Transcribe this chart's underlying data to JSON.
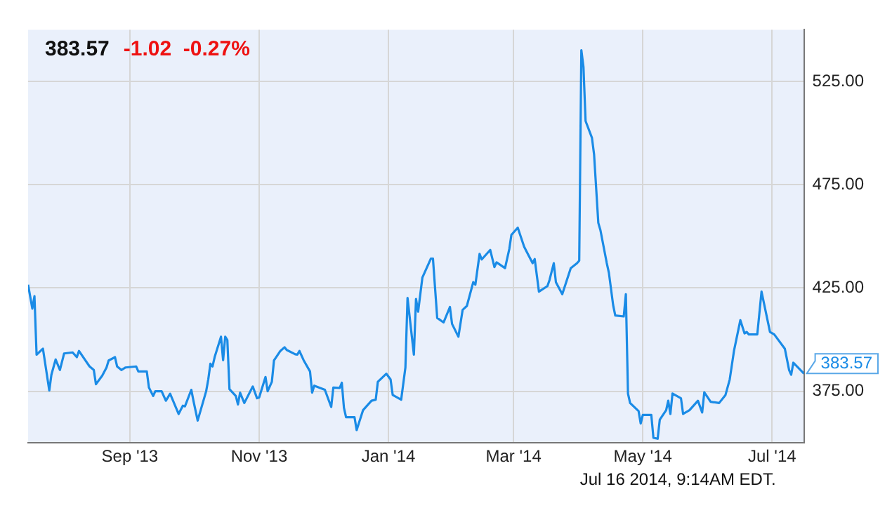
{
  "chart_data": {
    "type": "line",
    "title": "383.57",
    "subtitle": "-1.02  -0.27%",
    "annotations": [
      {
        "text": "383.57",
        "x": "2014-07-16",
        "y": 383.57
      },
      "Jul 16 2014, 9:14AM EDT."
    ],
    "xlim": [
      "2013-07-15",
      "2014-07-16"
    ],
    "xticks": [
      {
        "value": "2013-09-01",
        "label": "Sep '13"
      },
      {
        "value": "2013-11-01",
        "label": "Nov '13"
      },
      {
        "value": "2014-01-01",
        "label": "Jan '14"
      },
      {
        "value": "2014-03-01",
        "label": "Mar '14"
      },
      {
        "value": "2014-05-01",
        "label": "May '14"
      },
      {
        "value": "2014-07-01",
        "label": "Jul '14"
      }
    ],
    "ylim": [
      350,
      550
    ],
    "yticks": [
      {
        "value": 375,
        "label": "375.00"
      },
      {
        "value": 425,
        "label": "425.00"
      },
      {
        "value": 475,
        "label": "475.00"
      },
      {
        "value": 525,
        "label": "525.00"
      }
    ],
    "grid": true,
    "legend": false,
    "marker": "none",
    "line_style": "solid",
    "series": [
      {
        "color": "#1a8be6",
        "x": [
          "2013-07-15",
          "2013-07-17",
          "2013-07-18",
          "2013-07-19",
          "2013-07-22",
          "2013-07-25",
          "2013-07-26",
          "2013-07-28",
          "2013-07-30",
          "2013-08-01",
          "2013-08-05",
          "2013-08-07",
          "2013-08-08",
          "2013-08-13",
          "2013-08-15",
          "2013-08-16",
          "2013-08-19",
          "2013-08-21",
          "2013-08-22",
          "2013-08-25",
          "2013-08-26",
          "2013-08-28",
          "2013-08-30",
          "2013-09-04",
          "2013-09-05",
          "2013-09-09",
          "2013-09-10",
          "2013-09-12",
          "2013-09-13",
          "2013-09-16",
          "2013-09-18",
          "2013-09-20",
          "2013-09-24",
          "2013-09-26",
          "2013-09-27",
          "2013-09-30",
          "2013-10-01",
          "2013-10-03",
          "2013-10-07",
          "2013-10-08",
          "2013-10-09",
          "2013-10-10",
          "2013-10-11",
          "2013-10-14",
          "2013-10-15",
          "2013-10-16",
          "2013-10-17",
          "2013-10-18",
          "2013-10-21",
          "2013-10-22",
          "2013-10-23",
          "2013-10-25",
          "2013-10-29",
          "2013-10-31",
          "2013-11-01",
          "2013-11-04",
          "2013-11-05",
          "2013-11-07",
          "2013-11-08",
          "2013-11-11",
          "2013-11-13",
          "2013-11-14",
          "2013-11-18",
          "2013-11-19",
          "2013-11-20",
          "2013-11-22",
          "2013-11-25",
          "2013-11-26",
          "2013-11-27",
          "2013-12-02",
          "2013-12-05",
          "2013-12-06",
          "2013-12-09",
          "2013-12-10",
          "2013-12-11",
          "2013-12-12",
          "2013-12-16",
          "2013-12-17",
          "2013-12-18",
          "2013-12-20",
          "2013-12-24",
          "2013-12-26",
          "2013-12-27",
          "2013-12-31",
          "2014-01-02",
          "2014-01-03",
          "2014-01-07",
          "2014-01-09",
          "2014-01-10",
          "2014-01-13",
          "2014-01-14",
          "2014-01-15",
          "2014-01-17",
          "2014-01-21",
          "2014-01-22",
          "2014-01-24",
          "2014-01-27",
          "2014-01-30",
          "2014-01-31",
          "2014-02-03",
          "2014-02-05",
          "2014-02-07",
          "2014-02-10",
          "2014-02-11",
          "2014-02-13",
          "2014-02-14",
          "2014-02-18",
          "2014-02-20",
          "2014-02-21",
          "2014-02-25",
          "2014-02-27",
          "2014-02-28",
          "2014-03-03",
          "2014-03-06",
          "2014-03-07",
          "2014-03-10",
          "2014-03-11",
          "2014-03-13",
          "2014-03-17",
          "2014-03-18",
          "2014-03-20",
          "2014-03-21",
          "2014-03-24",
          "2014-03-28",
          "2014-03-31",
          "2014-04-01",
          "2014-04-02",
          "2014-04-03",
          "2014-04-04",
          "2014-04-07",
          "2014-04-08",
          "2014-04-10",
          "2014-04-11",
          "2014-04-14",
          "2014-04-15",
          "2014-04-17",
          "2014-04-18",
          "2014-04-22",
          "2014-04-23",
          "2014-04-24",
          "2014-04-25",
          "2014-04-29",
          "2014-04-30",
          "2014-05-01",
          "2014-05-05",
          "2014-05-06",
          "2014-05-08",
          "2014-05-09",
          "2014-05-12",
          "2014-05-13",
          "2014-05-14",
          "2014-05-15",
          "2014-05-19",
          "2014-05-20",
          "2014-05-23",
          "2014-05-27",
          "2014-05-29",
          "2014-05-30",
          "2014-06-02",
          "2014-06-06",
          "2014-06-09",
          "2014-06-11",
          "2014-06-13",
          "2014-06-16",
          "2014-06-18",
          "2014-06-19",
          "2014-06-20",
          "2014-06-24",
          "2014-06-26",
          "2014-06-30",
          "2014-07-02",
          "2014-07-07",
          "2014-07-09",
          "2014-07-10",
          "2014-07-11",
          "2014-07-16"
        ],
        "values": [
          426.6,
          415,
          421,
          392.7,
          395.6,
          375.4,
          383,
          390.4,
          385.3,
          393.3,
          393.8,
          391.5,
          394.5,
          387,
          385.3,
          378.4,
          382.6,
          386.5,
          389.9,
          391.5,
          387,
          385.3,
          386.5,
          387,
          384.6,
          384.6,
          376.8,
          372.7,
          375,
          375,
          370.4,
          373.8,
          364,
          368,
          367.7,
          375.7,
          370.4,
          360.8,
          375,
          380.7,
          388.3,
          387,
          391.5,
          401.4,
          390,
          401.4,
          399.8,
          376,
          372.7,
          368.6,
          374.3,
          369.3,
          377.3,
          371.6,
          372,
          381.9,
          375,
          379.6,
          389.9,
          394.5,
          396.3,
          395,
          392.9,
          392.7,
          394.5,
          390,
          384.6,
          374.3,
          377.7,
          375.7,
          367.4,
          376.8,
          376.6,
          379.1,
          367,
          362.4,
          362.4,
          356.2,
          359.4,
          365.8,
          370.4,
          370.9,
          379.6,
          383.5,
          380.7,
          373.2,
          370.9,
          386.5,
          420.2,
          392.7,
          419.7,
          413.5,
          430,
          439.2,
          439.2,
          410.5,
          408.3,
          415.8,
          407.6,
          401.4,
          414.4,
          416.3,
          427.8,
          426.6,
          441.5,
          438.8,
          443.4,
          435.1,
          437.4,
          434.6,
          443.8,
          450.7,
          454.2,
          445,
          443,
          437,
          439,
          423.2,
          425.9,
          428.9,
          437,
          427.8,
          422,
          434.6,
          437,
          438.2,
          540.1,
          532,
          505.8,
          497.7,
          489.7,
          456.5,
          453,
          437,
          432.3,
          416.7,
          411.7,
          411.2,
          422,
          373.9,
          369.3,
          365.4,
          359.4,
          363.5,
          363.5,
          352.5,
          352,
          361.2,
          365.8,
          370.4,
          364,
          373.9,
          371.6,
          364,
          365.8,
          370.4,
          364.7,
          374.5,
          369.9,
          369.3,
          373.2,
          380.7,
          394.5,
          409.4,
          403,
          403.7,
          402.5,
          402.5,
          423.2,
          403.7,
          402.5,
          395.6,
          385.3,
          383,
          388.8,
          383.57
        ]
      }
    ]
  }
}
